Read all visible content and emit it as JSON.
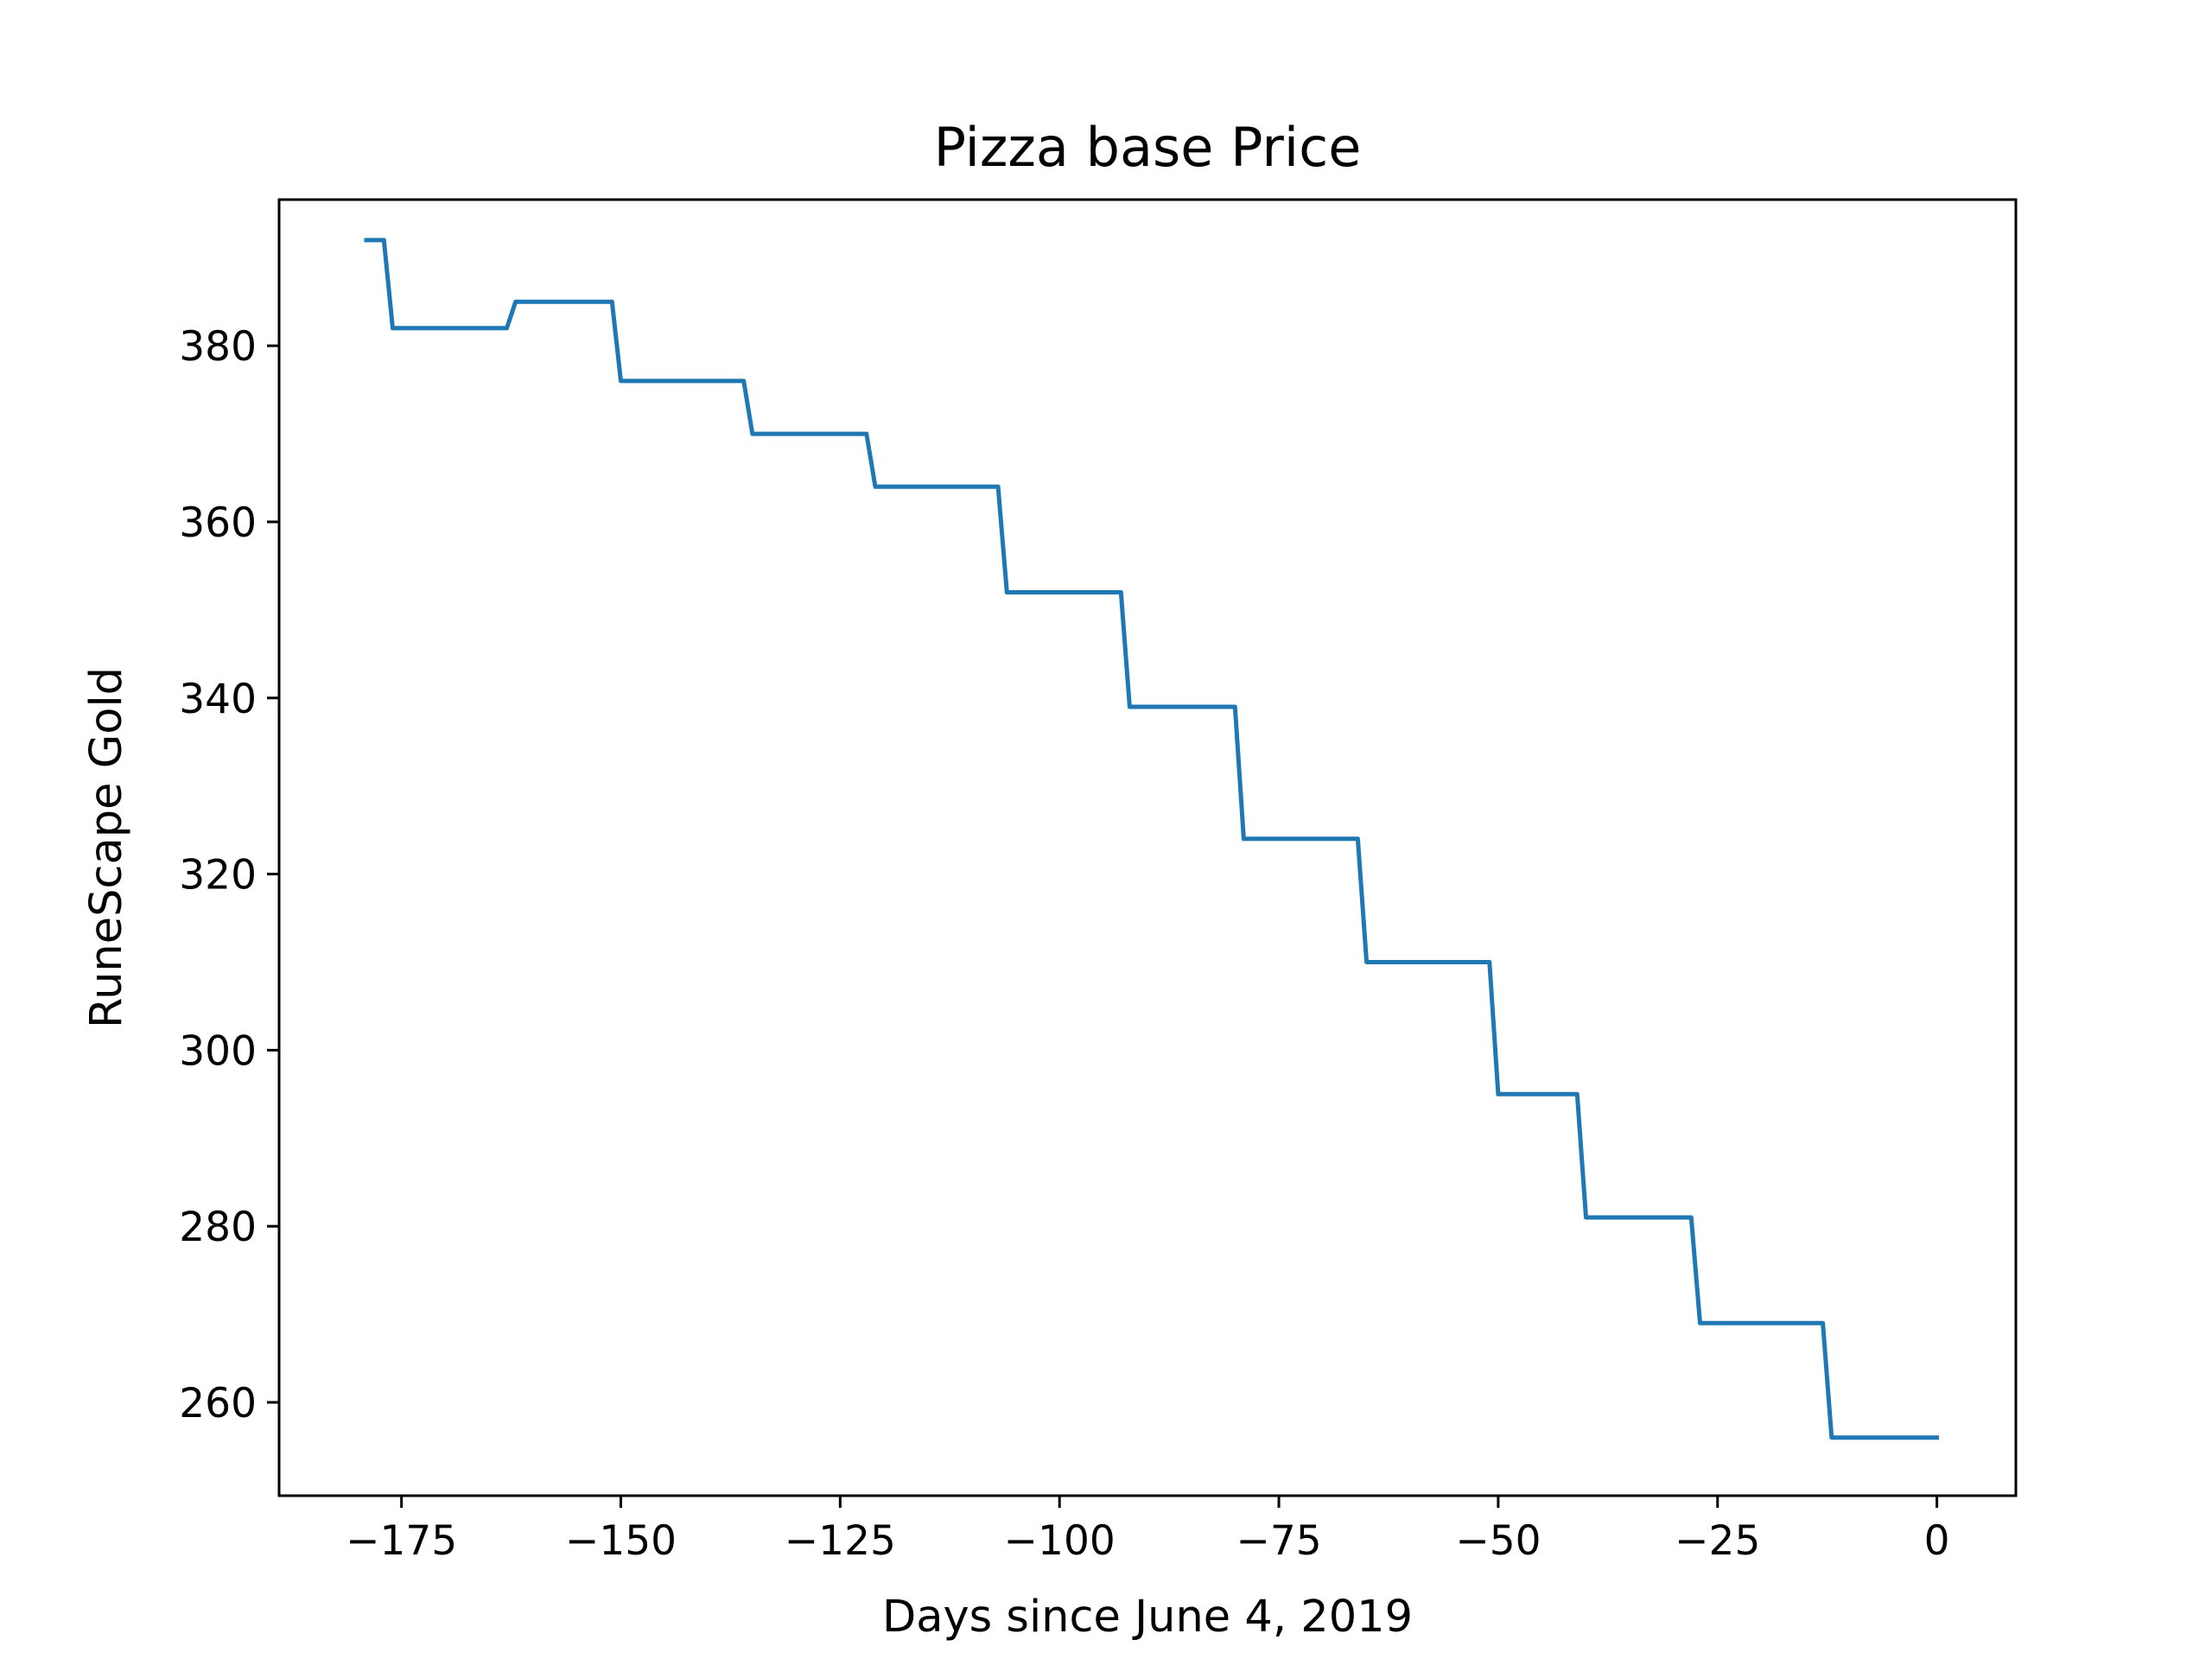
{
  "chart_data": {
    "type": "line",
    "title": "Pizza base Price",
    "xlabel": "Days since June 4, 2019",
    "ylabel": "RuneScape Gold",
    "xlim": [
      -188.95,
      9.0
    ],
    "ylim": [
      249.4,
      396.6
    ],
    "xticks": [
      -175,
      -150,
      -125,
      -100,
      -75,
      -50,
      -25,
      0
    ],
    "xtick_labels": [
      "−175",
      "−150",
      "−125",
      "−100",
      "−75",
      "−50",
      "−25",
      "0"
    ],
    "yticks": [
      260,
      280,
      300,
      320,
      340,
      360,
      380
    ],
    "ytick_labels": [
      "260",
      "280",
      "300",
      "320",
      "340",
      "360",
      "380"
    ],
    "grid": false,
    "series": [
      {
        "color": "#1f77b4",
        "x": [
          -179,
          -177,
          -176,
          -163,
          -162,
          -151,
          -150,
          -136,
          -135,
          -122,
          -121,
          -107,
          -106,
          -93,
          -92,
          -80,
          -79,
          -66,
          -65,
          -51,
          -50,
          -41,
          -40,
          -28,
          -27,
          -13,
          -12,
          0
        ],
        "y": [
          392,
          392,
          382,
          382,
          385,
          385,
          376,
          376,
          370,
          370,
          364,
          364,
          352,
          352,
          339,
          339,
          324,
          324,
          310,
          310,
          295,
          295,
          281,
          281,
          269,
          269,
          256,
          256
        ]
      }
    ]
  }
}
